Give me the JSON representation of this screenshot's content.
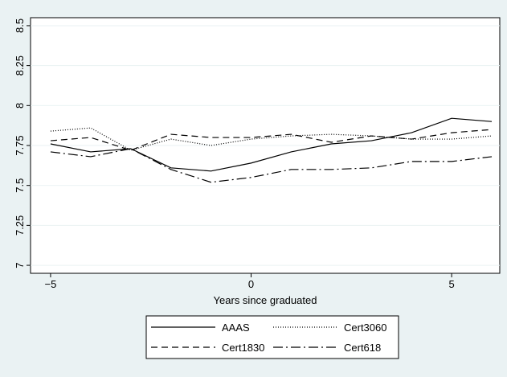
{
  "chart_data": {
    "type": "line",
    "x": [
      -5,
      -4,
      -3,
      -2,
      -1,
      0,
      1,
      2,
      3,
      4,
      5,
      6
    ],
    "series": [
      {
        "name": "AAAS",
        "color": "#000000",
        "dash": "solid",
        "values": [
          7.76,
          7.71,
          7.73,
          7.61,
          7.59,
          7.64,
          7.71,
          7.76,
          7.78,
          7.83,
          7.92,
          7.9
        ]
      },
      {
        "name": "Cert3060",
        "color": "#000000",
        "dash": "dotted",
        "values": [
          7.84,
          7.86,
          7.72,
          7.79,
          7.75,
          7.79,
          7.81,
          7.82,
          7.81,
          7.79,
          7.79,
          7.81
        ]
      },
      {
        "name": "Cert1830",
        "color": "#000000",
        "dash": "dashed",
        "values": [
          7.78,
          7.8,
          7.72,
          7.82,
          7.8,
          7.8,
          7.82,
          7.77,
          7.81,
          7.79,
          7.83,
          7.85
        ]
      },
      {
        "name": "Cert618",
        "color": "#000000",
        "dash": "dashdot",
        "values": [
          7.71,
          7.68,
          7.73,
          7.6,
          7.52,
          7.55,
          7.6,
          7.6,
          7.61,
          7.65,
          7.65,
          7.68
        ]
      }
    ],
    "xlabel": "Years since graduated",
    "xlim": [
      -5.5,
      6.2
    ],
    "xticks": [
      {
        "value": -5,
        "label": "−5"
      },
      0,
      5
    ],
    "ylim": [
      6.95,
      8.55
    ],
    "yticks": [
      7,
      7.25,
      7.5,
      7.75,
      8,
      8.25,
      8.5
    ],
    "grid": true,
    "legend": "bottom"
  }
}
